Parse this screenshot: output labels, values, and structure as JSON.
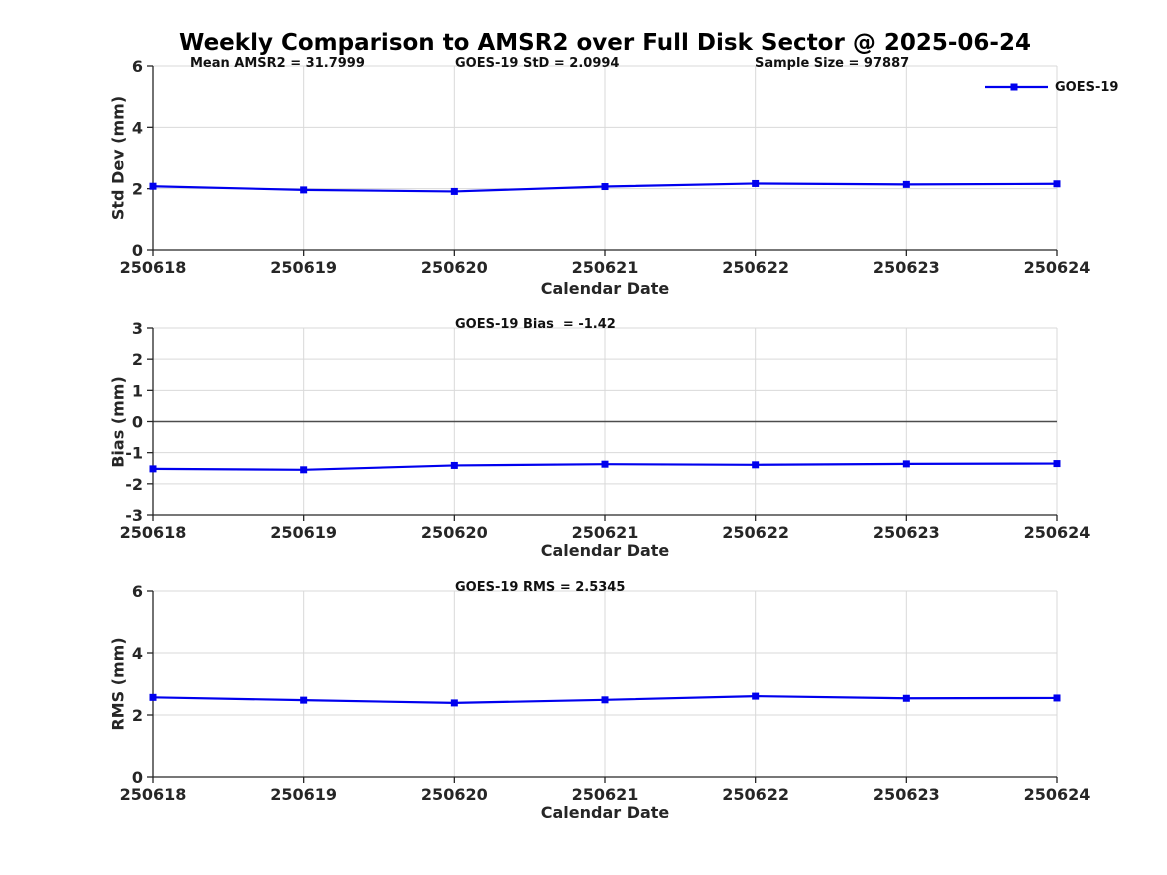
{
  "title": "Weekly Comparison to AMSR2 over Full Disk Sector @ 2025-06-24",
  "legend": {
    "label": "GOES-19"
  },
  "colors": {
    "series": "#0000EE",
    "axis": "#262626",
    "tick_label": "#262626",
    "grid": "#D9D9D9",
    "zero_line": "#4D4D4D",
    "background": "#FFFFFF"
  },
  "chart_data": [
    {
      "type": "line",
      "name": "std-dev-subplot",
      "categories": [
        "250618",
        "250619",
        "250620",
        "250621",
        "250622",
        "250623",
        "250624"
      ],
      "series": [
        {
          "name": "GOES-19",
          "values": [
            2.08,
            1.96,
            1.91,
            2.07,
            2.17,
            2.14,
            2.16
          ]
        }
      ],
      "xlabel": "Calendar Date",
      "ylabel": "Std Dev (mm)",
      "ylim": [
        0,
        6
      ],
      "yticks": [
        0,
        2,
        4,
        6
      ],
      "grid": true,
      "zero_line": false,
      "legend_position": "top-right",
      "annotations": [
        {
          "text": "Mean AMSR2 = 31.7999"
        },
        {
          "text": "GOES-19 StD = 2.0994"
        },
        {
          "text": "Sample Size = 97887"
        }
      ]
    },
    {
      "type": "line",
      "name": "bias-subplot",
      "categories": [
        "250618",
        "250619",
        "250620",
        "250621",
        "250622",
        "250623",
        "250624"
      ],
      "series": [
        {
          "name": "GOES-19",
          "values": [
            -1.52,
            -1.55,
            -1.41,
            -1.37,
            -1.39,
            -1.36,
            -1.35
          ]
        }
      ],
      "xlabel": "Calendar Date",
      "ylabel": "Bias (mm)",
      "ylim": [
        -3,
        3
      ],
      "yticks": [
        -3,
        -2,
        -1,
        0,
        1,
        2,
        3
      ],
      "grid": true,
      "zero_line": true,
      "annotations": [
        {
          "text": "GOES-19 Bias  = -1.42"
        }
      ]
    },
    {
      "type": "line",
      "name": "rms-subplot",
      "categories": [
        "250618",
        "250619",
        "250620",
        "250621",
        "250622",
        "250623",
        "250624"
      ],
      "series": [
        {
          "name": "GOES-19",
          "values": [
            2.57,
            2.48,
            2.39,
            2.49,
            2.61,
            2.54,
            2.55
          ]
        }
      ],
      "xlabel": "Calendar Date",
      "ylabel": "RMS (mm)",
      "ylim": [
        0,
        6
      ],
      "yticks": [
        0,
        2,
        4,
        6
      ],
      "grid": true,
      "zero_line": false,
      "annotations": [
        {
          "text": "GOES-19 RMS = 2.5345"
        }
      ]
    }
  ]
}
